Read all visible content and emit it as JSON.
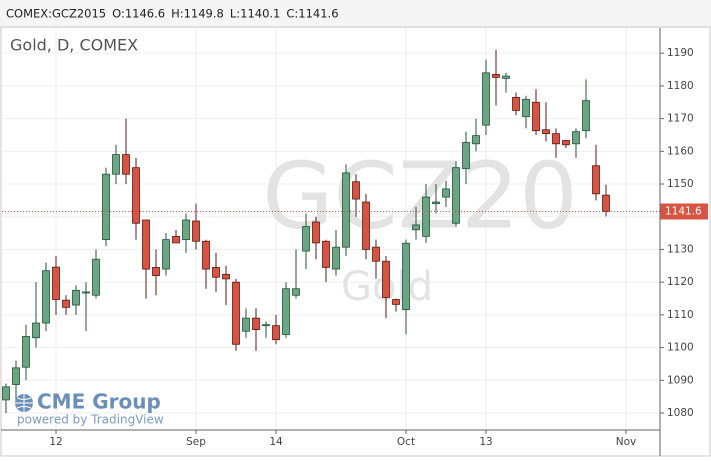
{
  "header": [
    "COMEX:GCZ2015",
    "O:1146.6",
    "H:1149.8",
    "L:1140.1",
    "C:1141.6"
  ],
  "chart_data": {
    "type": "candlestick",
    "title": "Gold, D, COMEX",
    "watermark": [
      "GCZ20",
      "Gold"
    ],
    "branding": [
      "CME Group",
      "powered by TradingView"
    ],
    "up_color": "#6ba583",
    "down_color": "#d75442",
    "grid": true,
    "xlim": [
      -0.4,
      65.4
    ],
    "xticks": [
      {
        "value": 5,
        "label": "12"
      },
      {
        "value": 19,
        "label": "Sep"
      },
      {
        "value": 27,
        "label": "14"
      },
      {
        "value": 40,
        "label": "Oct"
      },
      {
        "value": 48,
        "label": "13"
      },
      {
        "value": 62,
        "label": "Nov"
      }
    ],
    "ylim": [
      1074.8,
      1197.7
    ],
    "yticks": [
      1080,
      1090,
      1100,
      1110,
      1120,
      1130,
      1140,
      1150,
      1160,
      1170,
      1180,
      1190
    ],
    "open": [
      1084,
      1088.7,
      1094,
      1103,
      1107.5,
      1124.6,
      1114.5,
      1113,
      1117,
      1116,
      1133,
      1153,
      1159,
      1155,
      1139,
      1124.5,
      1124,
      1134,
      1133,
      1138.7,
      1132.5,
      1124.5,
      1122.4,
      1120,
      1105,
      1109,
      1106.7,
      1106.7,
      1104,
      1116,
      1129.5,
      1138.4,
      1132.5,
      1124,
      1130.7,
      1150.7,
      1144.5,
      1130.7,
      1126.4,
      1114.7,
      1111.6,
      1136,
      1134,
      1144,
      1146,
      1138,
      1154.7,
      1162.3,
      1168,
      1183.5,
      1182.3,
      1176.5,
      1170.6,
      1175,
      1166.6,
      1165.4,
      1163.3,
      1162.3,
      1166.3,
      1155.6,
      1146.6
    ],
    "high": [
      1089,
      1096,
      1107,
      1120,
      1126,
      1128,
      1116,
      1119,
      1120,
      1130,
      1155,
      1162,
      1170,
      1158,
      1139,
      1130,
      1135,
      1136,
      1141,
      1144,
      1133,
      1129,
      1125,
      1121,
      1112,
      1112,
      1108,
      1110,
      1120,
      1130,
      1141,
      1140,
      1133,
      1136,
      1156,
      1153,
      1147,
      1133,
      1128,
      1115,
      1133,
      1143,
      1150,
      1150,
      1151,
      1157,
      1166,
      1170,
      1188,
      1191,
      1184,
      1178,
      1177,
      1179,
      1175,
      1167,
      1163.5,
      1167,
      1182,
      1162,
      1149.8
    ],
    "low": [
      1080,
      1084,
      1090,
      1100,
      1105,
      1110,
      1110,
      1110,
      1105,
      1115,
      1131,
      1150,
      1150,
      1133,
      1115,
      1116,
      1122,
      1132,
      1129,
      1130,
      1118,
      1117,
      1113,
      1099,
      1103,
      1099,
      1103,
      1101,
      1103,
      1115,
      1124,
      1127,
      1120,
      1122,
      1128,
      1140,
      1127,
      1121,
      1109,
      1111,
      1104,
      1133,
      1132,
      1141,
      1143,
      1137,
      1150,
      1160,
      1165,
      1174,
      1178,
      1171,
      1167,
      1165,
      1163,
      1158,
      1161,
      1158,
      1164,
      1145,
      1140.1
    ],
    "close": [
      1088,
      1093.8,
      1103.4,
      1107.5,
      1123.5,
      1114.7,
      1112.3,
      1117.5,
      1117,
      1127,
      1153,
      1159,
      1153,
      1138,
      1124,
      1122,
      1133,
      1132,
      1139,
      1132.5,
      1124,
      1121.5,
      1121,
      1101,
      1109,
      1105.5,
      1107,
      1102.4,
      1118,
      1118,
      1137,
      1132,
      1124.5,
      1130.7,
      1153.4,
      1145.4,
      1130,
      1126.4,
      1115.3,
      1113.2,
      1131.9,
      1137.5,
      1146,
      1144.5,
      1148.5,
      1155,
      1162.7,
      1164.8,
      1184,
      1182.6,
      1183,
      1172.5,
      1175.9,
      1166.3,
      1165.4,
      1162.3,
      1162,
      1166,
      1175.5,
      1147,
      1141.6
    ]
  }
}
